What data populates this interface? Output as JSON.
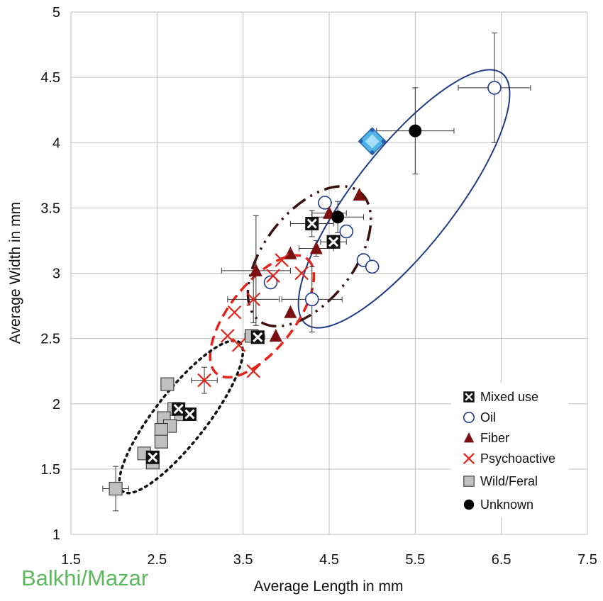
{
  "chart_data": {
    "type": "scatter",
    "title": "",
    "xlabel": "Average Length in mm",
    "ylabel": "Average Width in mm",
    "xlim": [
      1.5,
      7.5
    ],
    "ylim": [
      1,
      5
    ],
    "xticks": [
      "1.5",
      "2.5",
      "3.5",
      "4.5",
      "5.5",
      "6.5",
      "7.5"
    ],
    "yticks": [
      "1",
      "1.5",
      "2",
      "2.5",
      "3",
      "3.5",
      "4",
      "4.5",
      "5"
    ],
    "grid": true,
    "legend_position": "bottom-right",
    "series": [
      {
        "name": "Mixed use",
        "marker": "square-x",
        "color": "#111111",
        "points": [
          {
            "x": 4.3,
            "y": 3.38,
            "xerr": 0.25,
            "yerr": 0.1
          },
          {
            "x": 4.55,
            "y": 3.24,
            "xerr": 0.15,
            "yerr": 0.05
          },
          {
            "x": 3.67,
            "y": 2.51,
            "xerr": 0.08,
            "yerr": 0.04
          },
          {
            "x": 2.75,
            "y": 1.96
          },
          {
            "x": 2.88,
            "y": 1.92
          },
          {
            "x": 2.45,
            "y": 1.59
          }
        ]
      },
      {
        "name": "Oil",
        "marker": "circle-open",
        "color": "#1f3a8a",
        "points": [
          {
            "x": 6.42,
            "y": 4.42,
            "xerr": 0.42,
            "yerr": 0.42
          },
          {
            "x": 4.45,
            "y": 3.54
          },
          {
            "x": 4.7,
            "y": 3.32
          },
          {
            "x": 4.9,
            "y": 3.1
          },
          {
            "x": 5.0,
            "y": 3.05
          },
          {
            "x": 3.82,
            "y": 2.93
          },
          {
            "x": 4.3,
            "y": 2.8,
            "xerr": 0.35,
            "yerr": 0.25
          }
        ]
      },
      {
        "name": "Fiber",
        "marker": "triangle",
        "color": "#7b1010",
        "points": [
          {
            "x": 4.85,
            "y": 3.6
          },
          {
            "x": 4.5,
            "y": 3.46,
            "xerr": 0.2,
            "yerr": 0.08
          },
          {
            "x": 4.05,
            "y": 3.15
          },
          {
            "x": 4.35,
            "y": 3.19,
            "xerr": 0.2,
            "yerr": 0.06
          },
          {
            "x": 3.65,
            "y": 3.02,
            "xerr": 0.4,
            "yerr": 0.42
          },
          {
            "x": 4.05,
            "y": 2.7
          },
          {
            "x": 3.88,
            "y": 2.52
          }
        ]
      },
      {
        "name": "Psychoactive",
        "marker": "x",
        "color": "#e3241b",
        "points": [
          {
            "x": 3.95,
            "y": 3.1
          },
          {
            "x": 4.18,
            "y": 3.0
          },
          {
            "x": 3.85,
            "y": 2.98
          },
          {
            "x": 3.62,
            "y": 2.8,
            "xerr": 0.3,
            "yerr": 0.18
          },
          {
            "x": 3.4,
            "y": 2.7
          },
          {
            "x": 3.32,
            "y": 2.52
          },
          {
            "x": 3.45,
            "y": 2.45
          },
          {
            "x": 3.62,
            "y": 2.25
          },
          {
            "x": 3.05,
            "y": 2.18,
            "xerr": 0.15,
            "yerr": 0.1
          }
        ]
      },
      {
        "name": "Wild/Feral",
        "marker": "square",
        "color": "#c0c0c0",
        "points": [
          {
            "x": 3.6,
            "y": 2.52,
            "xerr": 0.08
          },
          {
            "x": 2.62,
            "y": 2.15
          },
          {
            "x": 2.7,
            "y": 1.96
          },
          {
            "x": 2.78,
            "y": 1.92
          },
          {
            "x": 2.58,
            "y": 1.89
          },
          {
            "x": 2.65,
            "y": 1.83
          },
          {
            "x": 2.55,
            "y": 1.8
          },
          {
            "x": 2.55,
            "y": 1.71
          },
          {
            "x": 2.35,
            "y": 1.62
          },
          {
            "x": 2.45,
            "y": 1.55
          },
          {
            "x": 2.02,
            "y": 1.35,
            "xerr": 0.15,
            "yerr": 0.17
          }
        ]
      },
      {
        "name": "Unknown",
        "marker": "circle-filled",
        "color": "#000000",
        "points": [
          {
            "x": 5.5,
            "y": 4.09,
            "xerr": 0.45,
            "yerr": 0.33
          },
          {
            "x": 4.6,
            "y": 3.43,
            "xerr": 0.3,
            "yerr": 0.12
          }
        ]
      }
    ],
    "highlight": {
      "name": "diamond-icon",
      "x": 5.0,
      "y": 4.01,
      "color": "#4fb3e8"
    },
    "ellipses": [
      {
        "group": "Oil",
        "cx": 5.37,
        "cy": 3.57,
        "rx": 1.85,
        "ry": 0.58,
        "angle_deg": 52,
        "color": "#1f3a8a",
        "style": "solid"
      },
      {
        "group": "Fiber",
        "cx": 4.27,
        "cy": 3.13,
        "rx": 0.95,
        "ry": 0.52,
        "angle_deg": 52,
        "color": "#3a0f0f",
        "style": "dash-dot-dot"
      },
      {
        "group": "Psychoactive",
        "cx": 3.72,
        "cy": 2.67,
        "rx": 0.85,
        "ry": 0.38,
        "angle_deg": 52,
        "color": "#e3241b",
        "style": "dashed"
      },
      {
        "group": "Wild/Feral",
        "cx": 2.78,
        "cy": 1.9,
        "rx": 1.1,
        "ry": 0.3,
        "angle_deg": 52,
        "color": "#111111",
        "style": "dotted"
      }
    ]
  },
  "source_label": "Balkhi/Mazar"
}
